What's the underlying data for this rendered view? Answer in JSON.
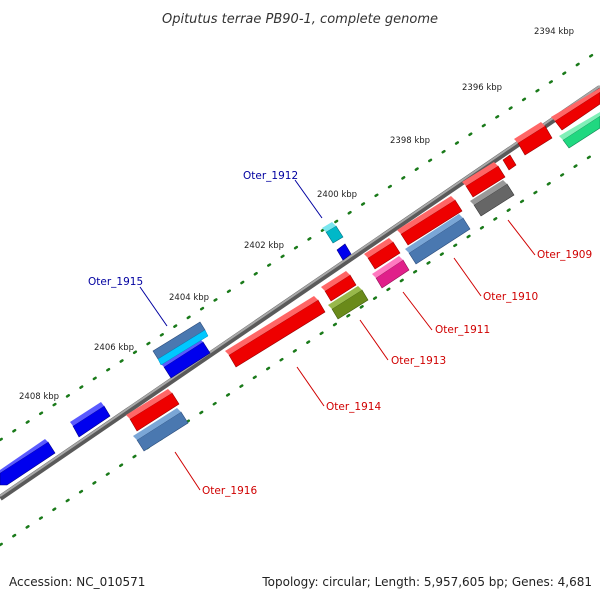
{
  "title": "Opitutus terrae PB90-1, complete genome",
  "footer": {
    "accession": "Accession: NC_010571",
    "summary": "Topology: circular; Length: 5,957,605 bp; Genes: 4,681"
  },
  "axis": {
    "tick_labels": [
      "2394 kbp",
      "2396 kbp",
      "2398 kbp",
      "2400 kbp",
      "2402 kbp",
      "2404 kbp",
      "2406 kbp",
      "2408 kbp"
    ]
  },
  "genes": [
    {
      "label": "Oter_1909",
      "color": "#d00000"
    },
    {
      "label": "Oter_1910",
      "color": "#d00000"
    },
    {
      "label": "Oter_1911",
      "color": "#d00000"
    },
    {
      "label": "Oter_1912",
      "color": "#0000a0"
    },
    {
      "label": "Oter_1913",
      "color": "#d00000"
    },
    {
      "label": "Oter_1914",
      "color": "#d00000"
    },
    {
      "label": "Oter_1915",
      "color": "#0000a0"
    },
    {
      "label": "Oter_1916",
      "color": "#d00000"
    }
  ],
  "colors": {
    "backbone": "#808080",
    "tick": "#1a7a1a",
    "forward_strand": "#ff0000",
    "reverse_strand": "#0000ff",
    "label_forward": "#d00000",
    "label_reverse": "#0000a0"
  }
}
